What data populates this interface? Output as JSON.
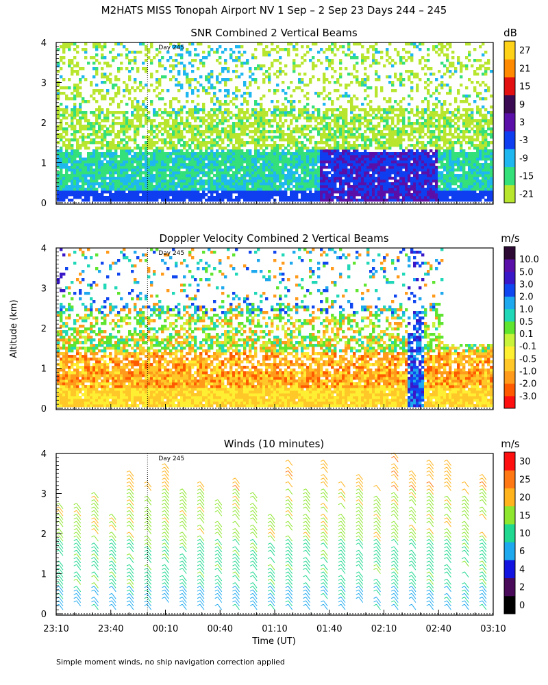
{
  "header": {
    "title": "M2HATS MISS Tonopah Airport NV   1 Sep –  2 Sep 23 Days 244 – 245"
  },
  "y_axis_label": "Altitude (km)",
  "x_axis_label": "Time (UT)",
  "footnote": "Simple moment winds, no ship navigation correction applied",
  "day_marker_label": "Day 245",
  "colors": {
    "snr_scale": [
      "#b8e62e",
      "#33e07a",
      "#1eb7f0",
      "#0f3ef0",
      "#5a0fa8",
      "#3a0a52",
      "#e21010",
      "#ff8a00",
      "#ffd21a"
    ],
    "velocity_scale": [
      "#ff1010",
      "#ff5a00",
      "#ff9a1a",
      "#ffc828",
      "#ffef33",
      "#c9f23a",
      "#5fe52f",
      "#20d8b8",
      "#1ea8ee",
      "#0f46f0",
      "#3a18c8",
      "#5a0fa8",
      "#2c0a34"
    ],
    "wind_scale": [
      "#000000",
      "#4a0a5a",
      "#1414e0",
      "#1ea8ee",
      "#20d890",
      "#8ee62e",
      "#ffb41e",
      "#ff7814",
      "#ff1010"
    ]
  },
  "chart_data": [
    {
      "type": "heatmap",
      "title": "SNR Combined 2 Vertical Beams",
      "units_label": "dB",
      "x_ticks": [
        "23:10",
        "23:40",
        "00:10",
        "00:40",
        "01:10",
        "01:40",
        "02:10",
        "02:40",
        "03:10"
      ],
      "y_ticks": [
        "0",
        "1",
        "2",
        "3",
        "4"
      ],
      "ylim": [
        0,
        4
      ],
      "colorbar_labels": [
        "-21",
        "-15",
        "-9",
        "-3",
        "3",
        "9",
        "15",
        "21",
        "27"
      ],
      "grid": false
    },
    {
      "type": "heatmap",
      "title": "Doppler Velocity Combined 2 Vertical Beams",
      "units_label": "m/s",
      "x_ticks": [
        "23:10",
        "23:40",
        "00:10",
        "00:40",
        "01:10",
        "01:40",
        "02:10",
        "02:40",
        "03:10"
      ],
      "y_ticks": [
        "0",
        "1",
        "2",
        "3",
        "4"
      ],
      "ylim": [
        0,
        4
      ],
      "colorbar_labels": [
        "-3.0",
        "-2.0",
        "-1.0",
        "-0.5",
        "-0.1",
        "0.1",
        "0.5",
        "1.0",
        "2.0",
        "3.0",
        "5.0",
        "10.0"
      ],
      "grid": false
    },
    {
      "type": "scatter",
      "title": "Winds (10 minutes)",
      "units_label": "m/s",
      "x_ticks": [
        "23:10",
        "23:40",
        "00:10",
        "00:40",
        "01:10",
        "01:40",
        "02:10",
        "02:40",
        "03:10"
      ],
      "y_ticks": [
        "0",
        "1",
        "2",
        "3",
        "4"
      ],
      "ylim": [
        0,
        4
      ],
      "colorbar_labels": [
        "0",
        "2",
        "4",
        "6",
        "10",
        "15",
        "20",
        "25",
        "30"
      ],
      "grid": false
    }
  ]
}
